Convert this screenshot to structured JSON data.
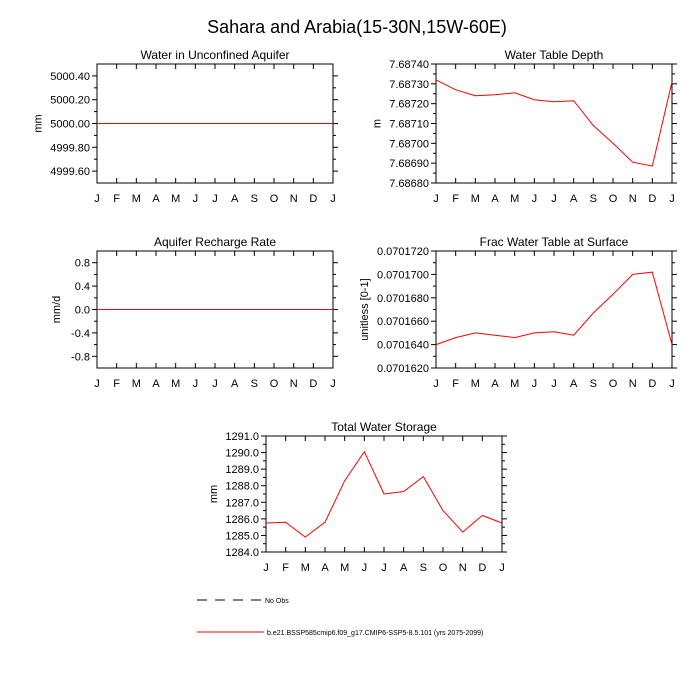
{
  "title": "Sahara and Arabia(15-30N,15W-60E)",
  "colors": {
    "series": "#ff0000",
    "obs": "#000000"
  },
  "legend": {
    "obs_label": "No Obs",
    "model_label": "b.e21.BSSP585cmip6.f09_g17.CMIP6-SSP5-8.5.101 (yrs 2075-2099)"
  },
  "chart_data": [
    {
      "type": "line",
      "title": "Water in Unconfined Aquifer",
      "ylabel": "mm",
      "categories": [
        "J",
        "F",
        "M",
        "A",
        "M",
        "J",
        "J",
        "A",
        "S",
        "O",
        "N",
        "D",
        "J"
      ],
      "yticks": [
        "5000.40",
        "5000.20",
        "5000.00",
        "4999.80",
        "4999.60"
      ],
      "ytick_values": [
        5000.4,
        5000.2,
        5000.0,
        4999.8,
        4999.6
      ],
      "ylim": [
        4999.5,
        5000.5
      ],
      "series": [
        {
          "values": [
            5000,
            5000,
            5000,
            5000,
            5000,
            5000,
            5000,
            5000,
            5000,
            5000,
            5000,
            5000,
            5000
          ]
        }
      ]
    },
    {
      "type": "line",
      "title": "Water Table Depth",
      "ylabel": "m",
      "categories": [
        "J",
        "F",
        "M",
        "A",
        "M",
        "J",
        "J",
        "A",
        "S",
        "O",
        "N",
        "D",
        "J"
      ],
      "yticks": [
        "7.68740",
        "7.68730",
        "7.68720",
        "7.68710",
        "7.68700",
        "7.68690",
        "7.68680"
      ],
      "ytick_values": [
        7.6874,
        7.6873,
        7.6872,
        7.6871,
        7.687,
        7.6869,
        7.6868
      ],
      "ylim": [
        7.6868,
        7.6874
      ],
      "series": [
        {
          "values": [
            7.68732,
            7.68727,
            7.68724,
            7.687245,
            7.687255,
            7.68722,
            7.68721,
            7.687215,
            7.68709,
            7.687,
            7.686905,
            7.686885,
            7.68731
          ]
        }
      ]
    },
    {
      "type": "line",
      "title": "Aquifer Recharge Rate",
      "ylabel": "mm/d",
      "categories": [
        "J",
        "F",
        "M",
        "A",
        "M",
        "J",
        "J",
        "A",
        "S",
        "O",
        "N",
        "D",
        "J"
      ],
      "yticks": [
        "0.8",
        "0.4",
        "0.0",
        "-0.4",
        "-0.8"
      ],
      "ytick_values": [
        0.8,
        0.4,
        0.0,
        -0.4,
        -0.8
      ],
      "ylim": [
        -1.0,
        1.0
      ],
      "series": [
        {
          "values": [
            0,
            0,
            0,
            0,
            0,
            0,
            0,
            0,
            0,
            0,
            0,
            0,
            0
          ]
        }
      ]
    },
    {
      "type": "line",
      "title": "Frac Water Table at Surface",
      "ylabel": "unitless [0-1]",
      "categories": [
        "J",
        "F",
        "M",
        "A",
        "M",
        "J",
        "J",
        "A",
        "S",
        "O",
        "N",
        "D",
        "J"
      ],
      "yticks": [
        "0.0701720",
        "0.0701700",
        "0.0701680",
        "0.0701660",
        "0.0701640",
        "0.0701620"
      ],
      "ytick_values": [
        0.070172,
        0.07017,
        0.070168,
        0.070166,
        0.070164,
        0.070162
      ],
      "ylim": [
        0.070162,
        0.070172
      ],
      "series": [
        {
          "values": [
            0.070164,
            0.0701646,
            0.070165,
            0.0701648,
            0.0701646,
            0.070165,
            0.0701651,
            0.0701648,
            0.0701667,
            0.0701683,
            0.07017,
            0.0701702,
            0.070164
          ]
        }
      ]
    },
    {
      "type": "line",
      "title": "Total Water Storage",
      "ylabel": "mm",
      "categories": [
        "J",
        "F",
        "M",
        "A",
        "M",
        "J",
        "J",
        "A",
        "S",
        "O",
        "N",
        "D",
        "J"
      ],
      "yticks": [
        "1291.0",
        "1290.0",
        "1289.0",
        "1288.0",
        "1287.0",
        "1286.0",
        "1285.0",
        "1284.0"
      ],
      "ytick_values": [
        1291,
        1290,
        1289,
        1288,
        1287,
        1286,
        1285,
        1284
      ],
      "ylim": [
        1284,
        1291
      ],
      "series": [
        {
          "values": [
            1285.75,
            1285.8,
            1284.9,
            1285.8,
            1288.3,
            1290.05,
            1287.5,
            1287.65,
            1288.55,
            1286.5,
            1285.2,
            1286.2,
            1285.75
          ]
        }
      ]
    }
  ]
}
